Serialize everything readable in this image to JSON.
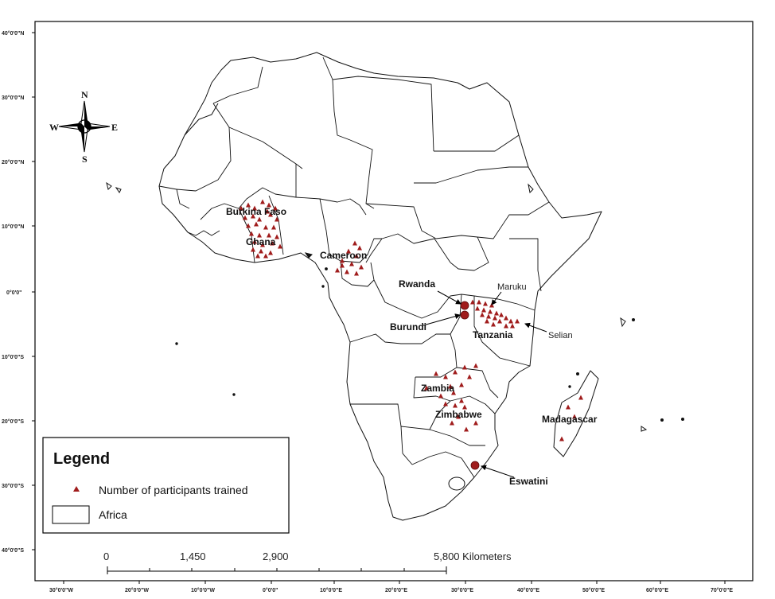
{
  "latitude_labels": [
    "40°0'0\"N",
    "30°0'0\"N",
    "20°0'0\"N",
    "10°0'0\"N",
    "0°0'0\"",
    "10°0'0\"S",
    "20°0'0\"S",
    "30°0'0\"S",
    "40°0'0\"S"
  ],
  "longitude_labels": [
    "30°0'0\"W",
    "20°0'0\"W",
    "10°0'0\"W",
    "0°0'0\"",
    "10°0'0\"E",
    "20°0'0\"E",
    "30°0'0\"E",
    "40°0'0\"E",
    "50°0'0\"E",
    "60°0'0\"E",
    "70°0'0\"E"
  ],
  "compass": {
    "n": "N",
    "s": "S",
    "e": "E",
    "w": "W"
  },
  "country_labels": {
    "burkina_faso": "Burkina Faso",
    "ghana": "Ghana",
    "cameroon": "Cameroon",
    "rwanda": "Rwanda",
    "burundi": "Burundi",
    "tanzania": "Tanzania",
    "zambia": "Zambia",
    "zimbabwe": "Zimbabwe",
    "madagascar": "Madagascar",
    "eswatini": "Eswatini"
  },
  "site_labels": {
    "maruku": "Maruku",
    "selian": "Selian"
  },
  "scale_bar": {
    "ticks": [
      "0",
      "1,450",
      "2,900",
      "5,800 Kilometers"
    ]
  },
  "legend": {
    "title": "Legend",
    "marker_label": "Number of participants trained",
    "area_label": "Africa"
  },
  "colors": {
    "marker": "#a01c1c",
    "border": "#111111",
    "land": "#ffffff"
  }
}
